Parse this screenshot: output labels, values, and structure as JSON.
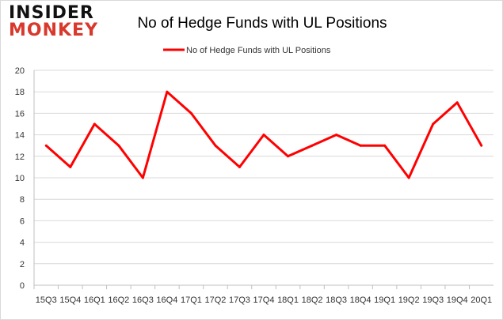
{
  "logo": {
    "line1": "INSIDER",
    "line2": "MONKEY"
  },
  "chart_data": {
    "type": "line",
    "title": "No of Hedge Funds with UL Positions",
    "categories": [
      "15Q3",
      "15Q4",
      "16Q1",
      "16Q2",
      "16Q3",
      "16Q4",
      "17Q1",
      "17Q2",
      "17Q3",
      "17Q4",
      "18Q1",
      "18Q2",
      "18Q3",
      "18Q4",
      "19Q1",
      "19Q2",
      "19Q3",
      "19Q4",
      "20Q1"
    ],
    "series": [
      {
        "name": "No of Hedge Funds with UL Positions",
        "color": "#ff0000",
        "values": [
          13,
          11,
          15,
          13,
          10,
          18,
          16,
          13,
          11,
          14,
          12,
          13,
          14,
          13,
          13,
          10,
          15,
          17,
          13
        ]
      }
    ],
    "ylim": [
      0,
      20
    ],
    "yticks": [
      0,
      2,
      4,
      6,
      8,
      10,
      12,
      14,
      16,
      18,
      20
    ],
    "grid": true,
    "legend": "top-center"
  }
}
